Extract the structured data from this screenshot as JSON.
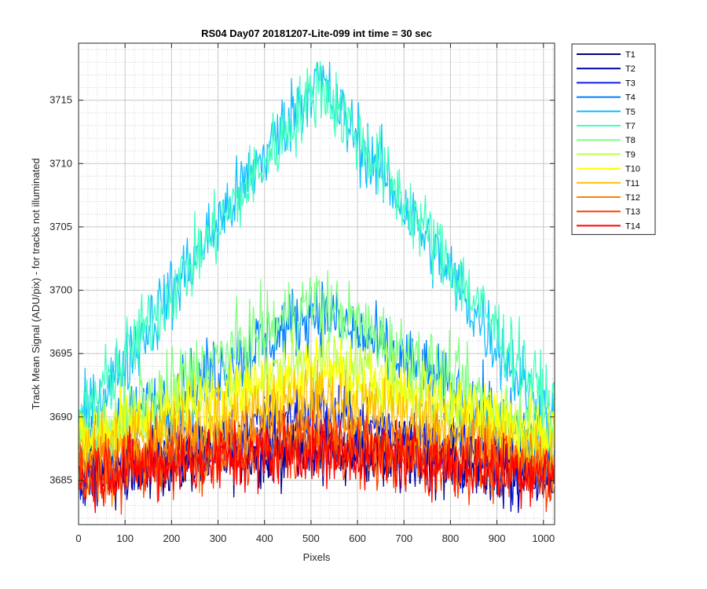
{
  "chart_data": {
    "type": "line",
    "title": "RS04 Day07 20181207-Lite-099 int time = 30 sec",
    "xlabel": "Pixels",
    "ylabel": "Track Mean Signal (ADU/pix) - for tracks not illuminated",
    "xlim": [
      0,
      1024
    ],
    "ylim": [
      3681.5,
      3719.5
    ],
    "x_ticks": [
      0,
      100,
      200,
      300,
      400,
      500,
      600,
      700,
      800,
      900,
      1000
    ],
    "y_ticks": [
      3685,
      3690,
      3695,
      3700,
      3705,
      3710,
      3715
    ],
    "grid": "on (major and minor, dotted)",
    "legend_location": "outside-right",
    "noise_amplitude_adu": 1.5,
    "series": [
      {
        "name": "T1",
        "color": "#00007f",
        "baseline": 3685.8,
        "peak": 3687.6,
        "peak_x": 512
      },
      {
        "name": "T2",
        "color": "#0000ad",
        "baseline": 3685.3,
        "peak": 3688.0,
        "peak_x": 512
      },
      {
        "name": "T3",
        "color": "#0a1ee0",
        "baseline": 3685.5,
        "peak": 3690.5,
        "peak_x": 512
      },
      {
        "name": "T4",
        "color": "#0080ff",
        "baseline": 3687.0,
        "peak": 3698.5,
        "peak_x": 512
      },
      {
        "name": "T5",
        "color": "#10c0ff",
        "baseline": 3689.0,
        "peak": 3716.8,
        "peak_x": 512
      },
      {
        "name": "T7",
        "color": "#40ffc0",
        "baseline": 3690.0,
        "peak": 3716.3,
        "peak_x": 520
      },
      {
        "name": "T8",
        "color": "#80ff80",
        "baseline": 3688.0,
        "peak": 3699.2,
        "peak_x": 512
      },
      {
        "name": "T9",
        "color": "#bfff40",
        "baseline": 3688.0,
        "peak": 3694.5,
        "peak_x": 512
      },
      {
        "name": "T10",
        "color": "#ffff00",
        "baseline": 3688.5,
        "peak": 3693.7,
        "peak_x": 512
      },
      {
        "name": "T11",
        "color": "#ffbf00",
        "baseline": 3687.0,
        "peak": 3691.7,
        "peak_x": 512
      },
      {
        "name": "T12",
        "color": "#ff8000",
        "baseline": 3686.0,
        "peak": 3689.0,
        "peak_x": 512
      },
      {
        "name": "T13",
        "color": "#ff4000",
        "baseline": 3685.3,
        "peak": 3687.7,
        "peak_x": 512
      },
      {
        "name": "T14",
        "color": "#ff0000",
        "baseline": 3685.6,
        "peak": 3687.4,
        "peak_x": 512
      }
    ]
  }
}
